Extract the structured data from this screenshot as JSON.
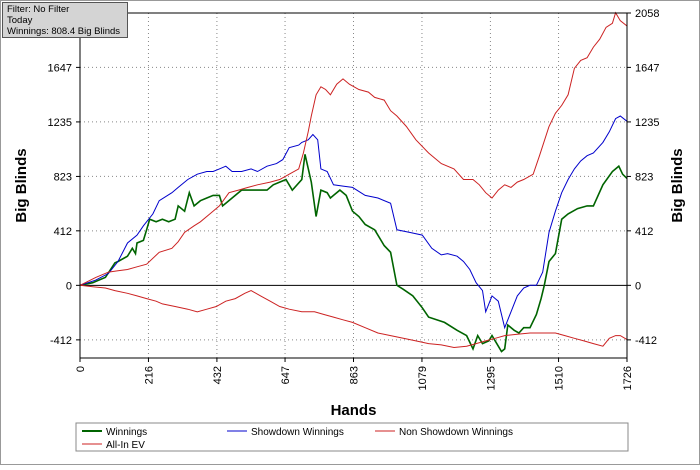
{
  "info": {
    "filter": "Filter: No Filter",
    "period": "Today",
    "winnings": "Winnings: 808.4 Big Blinds"
  },
  "colors": {
    "winnings": "#006400",
    "showdown": "#0000cc",
    "non_showdown": "#cc2222",
    "allin_ev": "#cc2222"
  },
  "chart_data": {
    "type": "line",
    "title": "",
    "xlabel": "Hands",
    "ylabel": "Big Blinds",
    "y2label": "Big Blinds",
    "xlim": [
      0,
      1726
    ],
    "ylim": [
      -549,
      2058
    ],
    "xticks": [
      0,
      216,
      432,
      647,
      863,
      1079,
      1295,
      1510,
      1726
    ],
    "yticks": [
      -412,
      0,
      412,
      823,
      1235,
      1647,
      2058
    ],
    "grid": true,
    "legend_position": "bottom",
    "series": [
      {
        "name": "Winnings",
        "points": [
          [
            0,
            0
          ],
          [
            40,
            20
          ],
          [
            80,
            60
          ],
          [
            110,
            170
          ],
          [
            120,
            180
          ],
          [
            150,
            220
          ],
          [
            165,
            280
          ],
          [
            175,
            240
          ],
          [
            180,
            320
          ],
          [
            200,
            340
          ],
          [
            210,
            420
          ],
          [
            220,
            500
          ],
          [
            240,
            480
          ],
          [
            260,
            500
          ],
          [
            280,
            480
          ],
          [
            300,
            500
          ],
          [
            310,
            600
          ],
          [
            330,
            560
          ],
          [
            345,
            700
          ],
          [
            360,
            600
          ],
          [
            380,
            640
          ],
          [
            400,
            660
          ],
          [
            420,
            680
          ],
          [
            440,
            680
          ],
          [
            450,
            600
          ],
          [
            460,
            620
          ],
          [
            480,
            660
          ],
          [
            510,
            720
          ],
          [
            540,
            720
          ],
          [
            560,
            720
          ],
          [
            590,
            720
          ],
          [
            610,
            760
          ],
          [
            630,
            780
          ],
          [
            650,
            800
          ],
          [
            670,
            720
          ],
          [
            700,
            800
          ],
          [
            710,
            990
          ],
          [
            730,
            780
          ],
          [
            745,
            520
          ],
          [
            760,
            720
          ],
          [
            780,
            700
          ],
          [
            790,
            660
          ],
          [
            800,
            680
          ],
          [
            820,
            720
          ],
          [
            840,
            680
          ],
          [
            860,
            560
          ],
          [
            880,
            520
          ],
          [
            900,
            460
          ],
          [
            930,
            420
          ],
          [
            960,
            300
          ],
          [
            980,
            250
          ],
          [
            1000,
            0
          ],
          [
            1020,
            -30
          ],
          [
            1050,
            -80
          ],
          [
            1080,
            -170
          ],
          [
            1100,
            -240
          ],
          [
            1150,
            -280
          ],
          [
            1190,
            -340
          ],
          [
            1220,
            -380
          ],
          [
            1240,
            -480
          ],
          [
            1255,
            -380
          ],
          [
            1270,
            -440
          ],
          [
            1290,
            -420
          ],
          [
            1300,
            -380
          ],
          [
            1310,
            -420
          ],
          [
            1330,
            -500
          ],
          [
            1340,
            -480
          ],
          [
            1350,
            -300
          ],
          [
            1370,
            -340
          ],
          [
            1385,
            -360
          ],
          [
            1400,
            -320
          ],
          [
            1420,
            -320
          ],
          [
            1440,
            -220
          ],
          [
            1455,
            -100
          ],
          [
            1465,
            0
          ],
          [
            1480,
            180
          ],
          [
            1500,
            240
          ],
          [
            1520,
            500
          ],
          [
            1540,
            540
          ],
          [
            1570,
            580
          ],
          [
            1600,
            600
          ],
          [
            1620,
            600
          ],
          [
            1650,
            760
          ],
          [
            1680,
            860
          ],
          [
            1700,
            900
          ],
          [
            1712,
            840
          ],
          [
            1726,
            808
          ]
        ]
      },
      {
        "name": "Showdown Winnings",
        "points": [
          [
            0,
            0
          ],
          [
            50,
            40
          ],
          [
            90,
            90
          ],
          [
            120,
            180
          ],
          [
            150,
            320
          ],
          [
            180,
            380
          ],
          [
            200,
            450
          ],
          [
            230,
            540
          ],
          [
            250,
            640
          ],
          [
            290,
            700
          ],
          [
            310,
            740
          ],
          [
            340,
            800
          ],
          [
            370,
            840
          ],
          [
            400,
            860
          ],
          [
            420,
            860
          ],
          [
            440,
            880
          ],
          [
            460,
            900
          ],
          [
            480,
            860
          ],
          [
            510,
            860
          ],
          [
            540,
            880
          ],
          [
            560,
            860
          ],
          [
            590,
            900
          ],
          [
            620,
            920
          ],
          [
            640,
            950
          ],
          [
            660,
            1040
          ],
          [
            690,
            1060
          ],
          [
            700,
            1080
          ],
          [
            720,
            1100
          ],
          [
            735,
            1140
          ],
          [
            750,
            1100
          ],
          [
            760,
            880
          ],
          [
            780,
            860
          ],
          [
            800,
            760
          ],
          [
            830,
            750
          ],
          [
            860,
            740
          ],
          [
            900,
            680
          ],
          [
            940,
            660
          ],
          [
            980,
            620
          ],
          [
            1000,
            420
          ],
          [
            1040,
            400
          ],
          [
            1080,
            380
          ],
          [
            1110,
            280
          ],
          [
            1140,
            230
          ],
          [
            1160,
            240
          ],
          [
            1190,
            220
          ],
          [
            1210,
            180
          ],
          [
            1230,
            120
          ],
          [
            1250,
            20
          ],
          [
            1270,
            -40
          ],
          [
            1280,
            -200
          ],
          [
            1300,
            -80
          ],
          [
            1320,
            -120
          ],
          [
            1340,
            -320
          ],
          [
            1360,
            -200
          ],
          [
            1380,
            -80
          ],
          [
            1400,
            -20
          ],
          [
            1420,
            0
          ],
          [
            1440,
            0
          ],
          [
            1460,
            100
          ],
          [
            1480,
            400
          ],
          [
            1500,
            560
          ],
          [
            1520,
            700
          ],
          [
            1540,
            800
          ],
          [
            1560,
            880
          ],
          [
            1580,
            940
          ],
          [
            1600,
            980
          ],
          [
            1620,
            1000
          ],
          [
            1650,
            1080
          ],
          [
            1670,
            1160
          ],
          [
            1690,
            1260
          ],
          [
            1705,
            1280
          ],
          [
            1726,
            1240
          ]
        ]
      },
      {
        "name": "Non Showdown Winnings",
        "points": [
          [
            0,
            0
          ],
          [
            40,
            -10
          ],
          [
            80,
            -20
          ],
          [
            110,
            -40
          ],
          [
            150,
            -60
          ],
          [
            180,
            -80
          ],
          [
            210,
            -100
          ],
          [
            240,
            -120
          ],
          [
            260,
            -140
          ],
          [
            300,
            -160
          ],
          [
            340,
            -180
          ],
          [
            370,
            -200
          ],
          [
            400,
            -180
          ],
          [
            430,
            -160
          ],
          [
            460,
            -120
          ],
          [
            490,
            -100
          ],
          [
            520,
            -60
          ],
          [
            540,
            -40
          ],
          [
            570,
            -80
          ],
          [
            600,
            -120
          ],
          [
            630,
            -160
          ],
          [
            660,
            -180
          ],
          [
            700,
            -200
          ],
          [
            740,
            -200
          ],
          [
            770,
            -220
          ],
          [
            800,
            -240
          ],
          [
            830,
            -260
          ],
          [
            860,
            -280
          ],
          [
            900,
            -320
          ],
          [
            940,
            -360
          ],
          [
            980,
            -380
          ],
          [
            1020,
            -400
          ],
          [
            1060,
            -420
          ],
          [
            1100,
            -440
          ],
          [
            1140,
            -450
          ],
          [
            1180,
            -470
          ],
          [
            1220,
            -460
          ],
          [
            1250,
            -440
          ],
          [
            1280,
            -420
          ],
          [
            1310,
            -400
          ],
          [
            1340,
            -380
          ],
          [
            1380,
            -370
          ],
          [
            1420,
            -360
          ],
          [
            1460,
            -360
          ],
          [
            1500,
            -360
          ],
          [
            1530,
            -380
          ],
          [
            1560,
            -400
          ],
          [
            1590,
            -420
          ],
          [
            1620,
            -440
          ],
          [
            1650,
            -460
          ],
          [
            1670,
            -400
          ],
          [
            1690,
            -380
          ],
          [
            1705,
            -380
          ],
          [
            1726,
            -410
          ]
        ]
      },
      {
        "name": "All-In EV",
        "points": [
          [
            0,
            0
          ],
          [
            50,
            60
          ],
          [
            90,
            100
          ],
          [
            120,
            110
          ],
          [
            150,
            120
          ],
          [
            180,
            140
          ],
          [
            210,
            160
          ],
          [
            250,
            250
          ],
          [
            290,
            280
          ],
          [
            310,
            330
          ],
          [
            330,
            400
          ],
          [
            360,
            450
          ],
          [
            380,
            480
          ],
          [
            410,
            540
          ],
          [
            440,
            600
          ],
          [
            470,
            700
          ],
          [
            500,
            720
          ],
          [
            530,
            740
          ],
          [
            560,
            760
          ],
          [
            600,
            780
          ],
          [
            630,
            800
          ],
          [
            660,
            840
          ],
          [
            690,
            880
          ],
          [
            705,
            1000
          ],
          [
            720,
            1160
          ],
          [
            730,
            1280
          ],
          [
            745,
            1440
          ],
          [
            760,
            1500
          ],
          [
            775,
            1480
          ],
          [
            790,
            1440
          ],
          [
            810,
            1520
          ],
          [
            830,
            1560
          ],
          [
            850,
            1520
          ],
          [
            880,
            1480
          ],
          [
            910,
            1460
          ],
          [
            930,
            1420
          ],
          [
            960,
            1400
          ],
          [
            980,
            1320
          ],
          [
            1000,
            1280
          ],
          [
            1030,
            1200
          ],
          [
            1060,
            1100
          ],
          [
            1100,
            1000
          ],
          [
            1140,
            920
          ],
          [
            1180,
            880
          ],
          [
            1210,
            800
          ],
          [
            1240,
            800
          ],
          [
            1260,
            760
          ],
          [
            1280,
            700
          ],
          [
            1300,
            660
          ],
          [
            1320,
            720
          ],
          [
            1340,
            760
          ],
          [
            1360,
            740
          ],
          [
            1380,
            780
          ],
          [
            1400,
            800
          ],
          [
            1430,
            840
          ],
          [
            1450,
            980
          ],
          [
            1480,
            1200
          ],
          [
            1500,
            1300
          ],
          [
            1520,
            1360
          ],
          [
            1540,
            1440
          ],
          [
            1560,
            1640
          ],
          [
            1580,
            1700
          ],
          [
            1600,
            1720
          ],
          [
            1620,
            1800
          ],
          [
            1640,
            1860
          ],
          [
            1660,
            1950
          ],
          [
            1680,
            1980
          ],
          [
            1690,
            2060
          ],
          [
            1705,
            2000
          ],
          [
            1726,
            1960
          ]
        ]
      }
    ]
  }
}
